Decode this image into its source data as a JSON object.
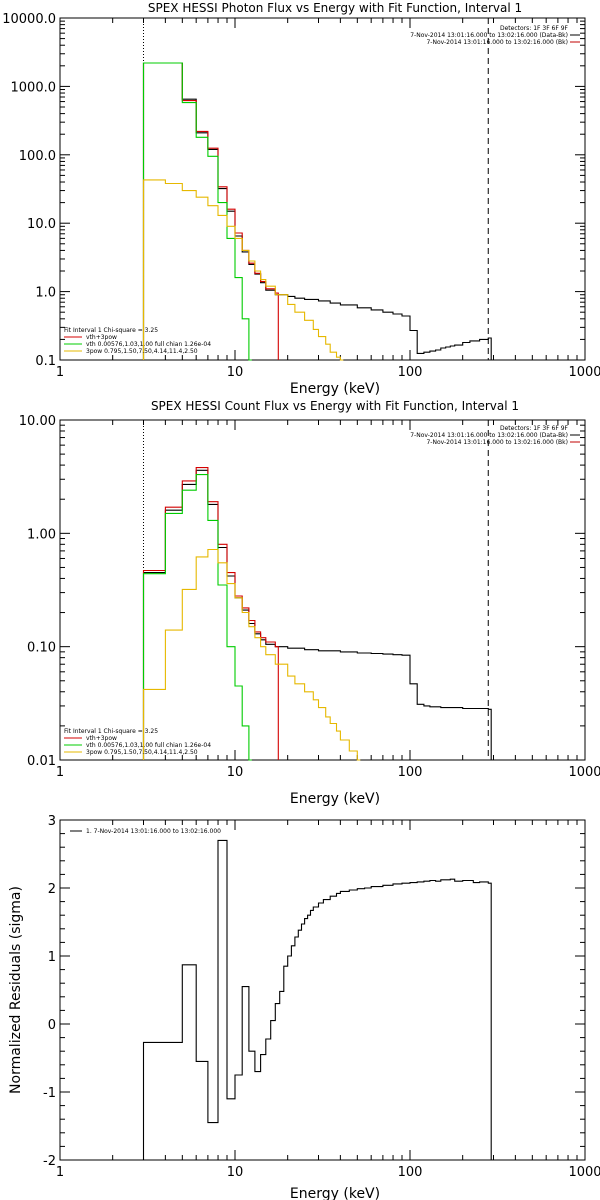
{
  "chart_data": [
    {
      "type": "line",
      "title": "SPEX HESSI Photon Flux vs Energy with Fit Function, Interval 1",
      "xlabel": "Energy (keV)",
      "ylabel": "",
      "xscale": "log",
      "yscale": "log",
      "xlim": [
        1,
        1000
      ],
      "ylim": [
        0.1,
        10000
      ],
      "x_tick_labels": [
        "1",
        "10",
        "100",
        "1000"
      ],
      "y_tick_values": [
        0.1,
        1,
        10,
        100,
        1000,
        10000
      ],
      "y_tick_labels": [
        "0.1",
        "1.0",
        "10.0",
        "100.0",
        "1000.0",
        "10000.0"
      ],
      "vlines": [
        {
          "x": 3,
          "style": "dotted"
        },
        {
          "x": 280,
          "style": "dashed"
        }
      ],
      "detector_text": "Detectors: 1F 3F 6F 9F",
      "data_labels": [
        {
          "text": "7-Nov-2014 13:01:16.000 to 13:02:16.000 (Data-Bk)",
          "color": "#000000"
        },
        {
          "text": "7-Nov-2014 13:01:16.000 to 13:02:16.000 (Bk)",
          "color": "#c00000"
        }
      ],
      "fit_legend": {
        "header": "Fit Interval 1   Chi-square = 3.25",
        "items": [
          {
            "text": "vth+3pow",
            "color": "#d40000"
          },
          {
            "text": "vth 0.00576,1.03,1.00  full chian 1.26e-04",
            "color": "#00cc00"
          },
          {
            "text": "3pow 0.795,1.50,7.50,4.14,11.4,2.50",
            "color": "#e6b800"
          }
        ]
      },
      "series": [
        {
          "color": "#000000",
          "x": [
            3,
            4,
            5,
            6,
            7,
            8,
            9,
            10,
            11,
            12,
            13,
            14,
            15,
            17,
            20,
            22,
            25,
            30,
            35,
            40,
            50,
            60,
            70,
            80,
            90,
            100,
            110,
            120,
            130,
            140,
            150,
            160,
            170,
            180,
            200,
            220,
            250,
            280
          ],
          "y": [
            2200,
            2200,
            650,
            210,
            120,
            32,
            15,
            6.5,
            3.8,
            2.5,
            1.8,
            1.35,
            1.05,
            0.9,
            0.85,
            0.8,
            0.77,
            0.73,
            0.68,
            0.64,
            0.58,
            0.54,
            0.5,
            0.47,
            0.44,
            0.27,
            0.125,
            0.13,
            0.135,
            0.14,
            0.15,
            0.155,
            0.16,
            0.165,
            0.18,
            0.19,
            0.2,
            0.21
          ]
        },
        {
          "color": "#d40000",
          "x": [
            3,
            4,
            5,
            6,
            7,
            8,
            9,
            10,
            11,
            12,
            13,
            14,
            15,
            17
          ],
          "y": [
            2200,
            2200,
            620,
            220,
            125,
            34,
            16,
            7.2,
            4.0,
            2.6,
            1.85,
            1.4,
            1.1,
            0.95
          ]
        },
        {
          "color": "#00cc00",
          "x": [
            3,
            4,
            5,
            6,
            7,
            8,
            9,
            10,
            11,
            12
          ],
          "y": [
            2200,
            2200,
            580,
            180,
            95,
            20,
            6,
            1.6,
            0.4,
            0.1
          ]
        },
        {
          "color": "#e6b800",
          "x": [
            3,
            4,
            5,
            6,
            7,
            8,
            9,
            10,
            11,
            12,
            13,
            14,
            15,
            17,
            20,
            22,
            25,
            28,
            30,
            33,
            35,
            38,
            40
          ],
          "y": [
            43,
            38,
            30,
            24,
            18,
            13,
            9,
            6,
            4,
            2.8,
            2.0,
            1.5,
            1.2,
            0.9,
            0.65,
            0.5,
            0.38,
            0.28,
            0.22,
            0.17,
            0.13,
            0.11,
            0.1
          ]
        }
      ]
    },
    {
      "type": "line",
      "title": "SPEX HESSI Count Flux vs Energy with Fit Function, Interval 1",
      "xlabel": "Energy (keV)",
      "ylabel": "",
      "xscale": "log",
      "yscale": "log",
      "xlim": [
        1,
        1000
      ],
      "ylim": [
        0.01,
        10
      ],
      "x_tick_labels": [
        "1",
        "10",
        "100",
        "1000"
      ],
      "y_tick_values": [
        0.01,
        0.1,
        1,
        10
      ],
      "y_tick_labels": [
        "0.01",
        "0.10",
        "1.00",
        "10.00"
      ],
      "vlines": [
        {
          "x": 3,
          "style": "dotted"
        },
        {
          "x": 280,
          "style": "dashed"
        }
      ],
      "detector_text": "Detectors: 1F 3F 6F 9F",
      "data_labels": [
        {
          "text": "7-Nov-2014 13:01:16.000 to 13:02:16.000 (Data-Bk)",
          "color": "#000000"
        },
        {
          "text": "7-Nov-2014 13:01:16.000 to 13:02:16.000 (Bk)",
          "color": "#c00000"
        }
      ],
      "fit_legend": {
        "header": "Fit Interval 1   Chi-square = 3.25",
        "items": [
          {
            "text": "vth+3pow",
            "color": "#d40000"
          },
          {
            "text": "vth 0.00576,1.03,1.00  full chian 1.26e-04",
            "color": "#00cc00"
          },
          {
            "text": "3pow 0.795,1.50,7.50,4.14,11.4,2.50",
            "color": "#e6b800"
          }
        ]
      },
      "series": [
        {
          "color": "#000000",
          "x": [
            3,
            4,
            5,
            6,
            7,
            8,
            9,
            10,
            11,
            12,
            13,
            14,
            15,
            17,
            20,
            25,
            30,
            40,
            50,
            60,
            70,
            80,
            90,
            100,
            110,
            120,
            130,
            150,
            200,
            280
          ],
          "y": [
            0.45,
            1.6,
            2.7,
            3.6,
            1.8,
            0.75,
            0.42,
            0.27,
            0.21,
            0.16,
            0.13,
            0.115,
            0.105,
            0.1,
            0.097,
            0.094,
            0.092,
            0.09,
            0.088,
            0.087,
            0.086,
            0.085,
            0.084,
            0.047,
            0.031,
            0.03,
            0.0295,
            0.029,
            0.0285,
            0.028
          ]
        },
        {
          "color": "#d40000",
          "x": [
            3,
            4,
            5,
            6,
            7,
            8,
            9,
            10,
            11,
            12,
            13,
            14,
            15,
            17
          ],
          "y": [
            0.47,
            1.7,
            2.9,
            3.8,
            1.9,
            0.8,
            0.45,
            0.28,
            0.22,
            0.17,
            0.135,
            0.12,
            0.11,
            0.1
          ]
        },
        {
          "color": "#00cc00",
          "x": [
            3,
            4,
            5,
            6,
            7,
            8,
            9,
            10,
            11,
            12
          ],
          "y": [
            0.44,
            1.5,
            2.4,
            3.3,
            1.3,
            0.35,
            0.1,
            0.045,
            0.02,
            0.01
          ]
        },
        {
          "color": "#e6b800",
          "x": [
            3,
            4,
            5,
            6,
            7,
            8,
            9,
            10,
            11,
            12,
            13,
            14,
            15,
            17,
            20,
            22,
            25,
            28,
            30,
            33,
            35,
            38,
            40,
            45,
            50
          ],
          "y": [
            0.042,
            0.14,
            0.32,
            0.62,
            0.72,
            0.55,
            0.36,
            0.27,
            0.2,
            0.15,
            0.12,
            0.1,
            0.085,
            0.07,
            0.055,
            0.047,
            0.04,
            0.034,
            0.029,
            0.024,
            0.021,
            0.018,
            0.015,
            0.012,
            0.01
          ]
        }
      ]
    },
    {
      "type": "line",
      "title": "",
      "xlabel": "Energy (keV)",
      "ylabel": "Normalized Residuals (sigma)",
      "xscale": "log",
      "yscale": "linear",
      "xlim": [
        1,
        1000
      ],
      "ylim": [
        -2,
        3
      ],
      "x_tick_labels": [
        "1",
        "10",
        "100",
        "1000"
      ],
      "y_tick_values": [
        -2,
        -1,
        0,
        1,
        2,
        3
      ],
      "y_tick_labels": [
        "-2",
        "-1",
        "0",
        "1",
        "2",
        "3"
      ],
      "legend": [
        {
          "text": "1.  7-Nov-2014 13:01:16.000 to 13:02:16.000",
          "color": "#000000"
        }
      ],
      "series": [
        {
          "color": "#000000",
          "x": [
            3,
            4,
            5,
            6,
            7,
            8,
            9,
            10,
            11,
            12,
            13,
            14,
            15,
            16,
            17,
            18,
            19,
            20,
            21,
            22,
            23,
            24,
            25,
            26,
            27,
            28,
            30,
            32,
            35,
            38,
            40,
            45,
            50,
            55,
            60,
            70,
            80,
            90,
            100,
            110,
            120,
            130,
            140,
            150,
            170,
            180,
            200,
            230,
            250,
            280
          ],
          "y": [
            -0.27,
            -0.27,
            0.87,
            -0.55,
            -1.45,
            2.7,
            -1.1,
            -0.75,
            0.55,
            -0.4,
            -0.7,
            -0.45,
            -0.22,
            0.05,
            0.3,
            0.48,
            0.85,
            1.0,
            1.15,
            1.28,
            1.38,
            1.47,
            1.55,
            1.6,
            1.67,
            1.72,
            1.78,
            1.83,
            1.88,
            1.92,
            1.95,
            1.97,
            1.99,
            2.0,
            2.02,
            2.04,
            2.06,
            2.07,
            2.08,
            2.09,
            2.1,
            2.11,
            2.1,
            2.12,
            2.13,
            2.1,
            2.11,
            2.08,
            2.09,
            2.07
          ]
        }
      ]
    }
  ]
}
